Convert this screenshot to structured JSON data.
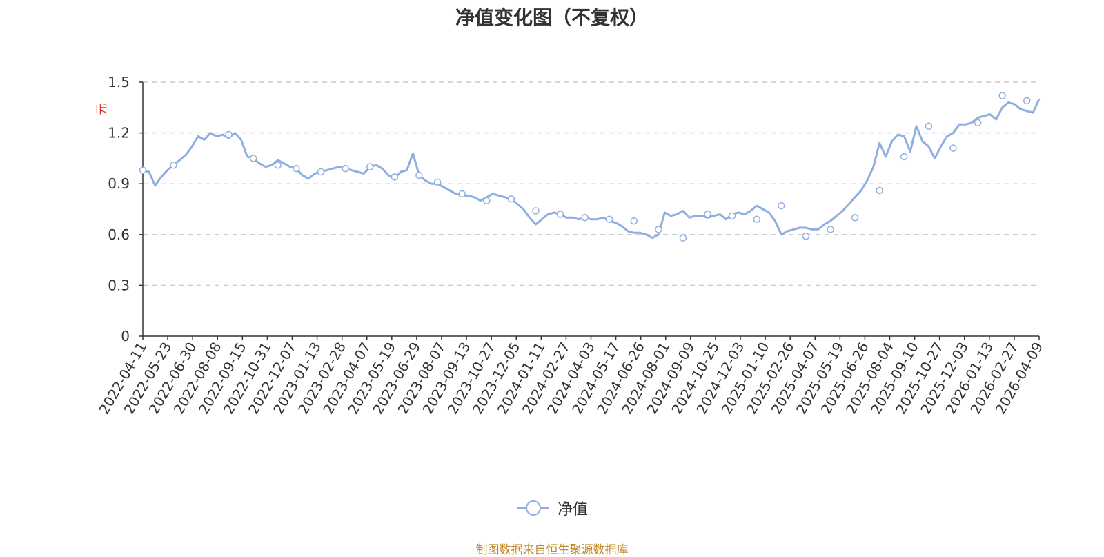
{
  "chart_data": {
    "type": "line",
    "title": "净值变化图（不复权）",
    "ylabel": "元",
    "ylim": [
      0,
      1.5
    ],
    "yticks": [
      "0",
      "0.3",
      "0.6",
      "0.9",
      "1.2",
      "1.5"
    ],
    "ytick_values": [
      0,
      0.3,
      0.6,
      0.9,
      1.2,
      1.5
    ],
    "x_tick_labels": [
      "2022-04-11",
      "2022-05-23",
      "2022-06-30",
      "2022-08-08",
      "2022-09-15",
      "2022-10-31",
      "2022-12-07",
      "2023-01-13",
      "2023-02-28",
      "2023-04-07",
      "2023-05-19",
      "2023-06-29",
      "2023-08-07",
      "2023-09-13",
      "2023-10-27",
      "2023-12-05",
      "2024-01-11",
      "2024-02-27",
      "2024-04-03",
      "2024-05-17",
      "2024-06-26",
      "2024-08-01",
      "2024-09-09",
      "2024-10-25",
      "2024-12-03",
      "2025-01-10",
      "2025-02-26",
      "2025-04-07",
      "2025-05-19",
      "2025-06-26",
      "2025-08-04",
      "2025-09-10",
      "2025-10-27",
      "2025-12-03",
      "2026-01-13",
      "2026-02-27",
      "2026-04-09"
    ],
    "grid": true,
    "legend_position": "bottom",
    "color": "#8eaee0",
    "series": [
      {
        "name": "净值",
        "values": [
          0.98,
          0.97,
          0.89,
          0.94,
          0.98,
          1.01,
          1.04,
          1.07,
          1.12,
          1.18,
          1.16,
          1.2,
          1.18,
          1.19,
          1.17,
          1.2,
          1.16,
          1.06,
          1.05,
          1.02,
          1.0,
          1.01,
          1.04,
          1.02,
          1.0,
          0.99,
          0.95,
          0.93,
          0.96,
          0.97,
          0.98,
          0.99,
          1.0,
          0.99,
          0.98,
          0.97,
          0.96,
          1.0,
          1.01,
          0.99,
          0.95,
          0.93,
          0.97,
          0.98,
          1.08,
          0.95,
          0.92,
          0.9,
          0.9,
          0.88,
          0.86,
          0.84,
          0.83,
          0.83,
          0.82,
          0.8,
          0.82,
          0.84,
          0.83,
          0.82,
          0.81,
          0.78,
          0.75,
          0.7,
          0.66,
          0.69,
          0.72,
          0.73,
          0.72,
          0.7,
          0.7,
          0.69,
          0.7,
          0.69,
          0.69,
          0.7,
          0.68,
          0.67,
          0.65,
          0.62,
          0.61,
          0.61,
          0.6,
          0.58,
          0.6,
          0.73,
          0.71,
          0.72,
          0.74,
          0.7,
          0.71,
          0.71,
          0.7,
          0.71,
          0.72,
          0.69,
          0.72,
          0.73,
          0.72,
          0.74,
          0.77,
          0.75,
          0.73,
          0.68,
          0.6,
          0.62,
          0.63,
          0.64,
          0.64,
          0.63,
          0.63,
          0.66,
          0.68,
          0.71,
          0.74,
          0.78,
          0.82,
          0.86,
          0.92,
          1.0,
          1.14,
          1.06,
          1.15,
          1.19,
          1.18,
          1.09,
          1.24,
          1.15,
          1.12,
          1.05,
          1.12,
          1.18,
          1.2,
          1.25,
          1.25,
          1.26,
          1.29,
          1.3,
          1.31,
          1.28,
          1.35,
          1.38,
          1.37,
          1.34,
          1.33,
          1.32,
          1.4
        ],
        "markers": [
          [
            0,
            0.98
          ],
          [
            5,
            1.01
          ],
          [
            14,
            1.19
          ],
          [
            18,
            1.05
          ],
          [
            22,
            1.01
          ],
          [
            25,
            0.99
          ],
          [
            29,
            0.97
          ],
          [
            33,
            0.99
          ],
          [
            37,
            1.0
          ],
          [
            41,
            0.94
          ],
          [
            45,
            0.95
          ],
          [
            48,
            0.91
          ],
          [
            52,
            0.84
          ],
          [
            56,
            0.8
          ],
          [
            60,
            0.81
          ],
          [
            64,
            0.74
          ],
          [
            68,
            0.72
          ],
          [
            72,
            0.7
          ],
          [
            76,
            0.69
          ],
          [
            80,
            0.68
          ],
          [
            84,
            0.63
          ],
          [
            88,
            0.58
          ],
          [
            92,
            0.72
          ],
          [
            96,
            0.71
          ],
          [
            100,
            0.69
          ],
          [
            104,
            0.77
          ],
          [
            108,
            0.59
          ],
          [
            112,
            0.63
          ],
          [
            116,
            0.7
          ],
          [
            120,
            0.86
          ],
          [
            124,
            1.06
          ],
          [
            128,
            1.24
          ],
          [
            132,
            1.11
          ],
          [
            136,
            1.26
          ],
          [
            140,
            1.42
          ],
          [
            144,
            1.39
          ]
        ]
      }
    ]
  },
  "legend": {
    "label": "净值"
  },
  "source_note": "制图数据来自恒生聚源数据库"
}
